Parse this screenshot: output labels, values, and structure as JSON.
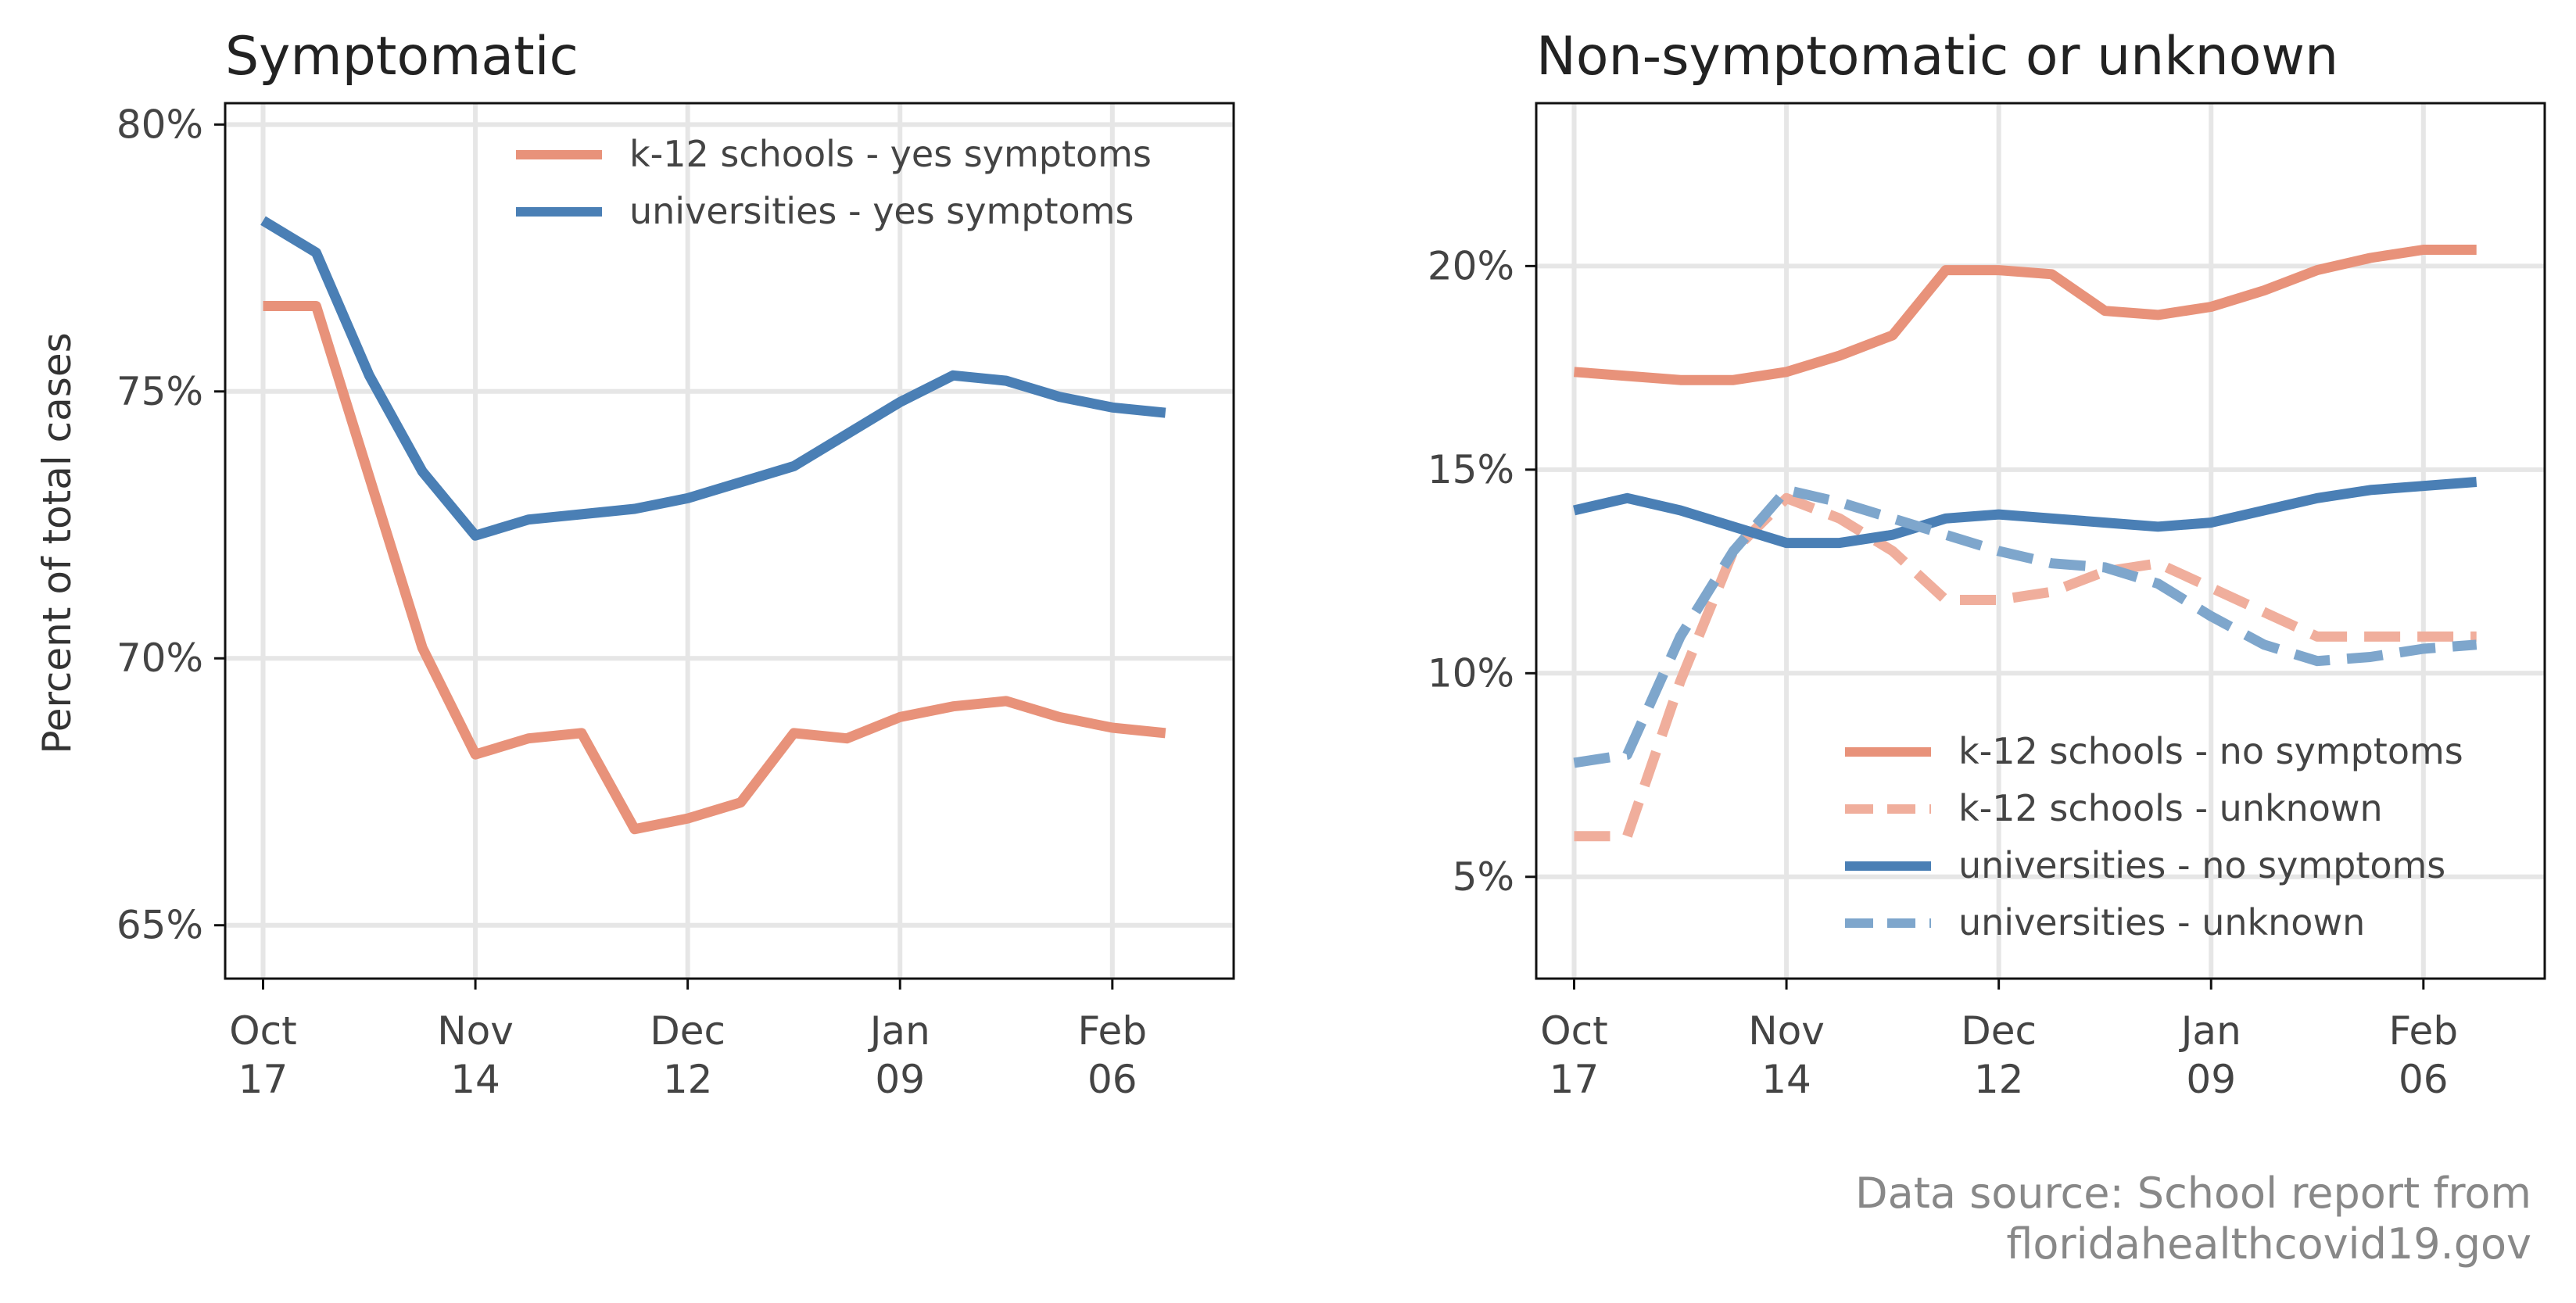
{
  "colors": {
    "k12": "#e8927a",
    "k12_light": "#f0ae9c",
    "univ": "#4a7fb5",
    "univ_light": "#7ea6cc",
    "grid": "#e6e6e6",
    "frame": "#111111"
  },
  "source": {
    "line1": "Data source: School report from",
    "line2": "floridahealthcovid19.gov"
  },
  "chart_data": [
    {
      "type": "line",
      "title": "Symptomatic",
      "ylabel": "Percent of total cases",
      "xlabel": "",
      "grid": true,
      "legend_position": "top-right",
      "ylim": [
        64,
        80.4
      ],
      "yticks": [
        65,
        70,
        75,
        80
      ],
      "ytick_labels": [
        "65%",
        "70%",
        "75%",
        "80%"
      ],
      "xlim": [
        "2020-10-12",
        "2021-02-22"
      ],
      "xticks": [
        "2020-10-17",
        "2020-11-14",
        "2020-12-12",
        "2021-01-09",
        "2021-02-06"
      ],
      "xtick_labels": [
        [
          "Oct",
          "17"
        ],
        [
          "Nov",
          "14"
        ],
        [
          "Dec",
          "12"
        ],
        [
          "Jan",
          "09"
        ],
        [
          "Feb",
          "06"
        ]
      ],
      "x": [
        "2020-10-17",
        "2020-10-24",
        "2020-10-31",
        "2020-11-07",
        "2020-11-14",
        "2020-11-21",
        "2020-11-28",
        "2020-12-05",
        "2020-12-12",
        "2020-12-19",
        "2020-12-26",
        "2021-01-02",
        "2021-01-09",
        "2021-01-16",
        "2021-01-23",
        "2021-01-30",
        "2021-02-06",
        "2021-02-13"
      ],
      "series": [
        {
          "name": "k-12 schools - yes symptoms",
          "color_key": "k12",
          "dash": "solid",
          "values": [
            76.6,
            76.6,
            70.2,
            68.2,
            68.5,
            68.6,
            66.8,
            67.0,
            67.3,
            68.6,
            68.5,
            68.9,
            69.1,
            69.2,
            68.9,
            68.7,
            68.7,
            68.6
          ],
          "x_override": [
            "2020-10-17",
            "2020-10-24",
            "2020-11-07",
            "2020-11-14",
            "2020-11-21",
            "2020-11-28",
            "2020-12-05",
            "2020-12-12",
            "2020-12-19",
            "2020-12-26",
            "2021-01-02",
            "2021-01-09",
            "2021-01-16",
            "2021-01-23",
            "2021-01-30",
            "2021-02-06",
            "2021-02-06",
            "2021-02-13"
          ]
        },
        {
          "name": "universities - yes symptoms",
          "color_key": "univ",
          "dash": "solid",
          "values": [
            78.2,
            77.6,
            75.3,
            73.5,
            72.3,
            72.6,
            72.7,
            72.8,
            73.0,
            73.3,
            73.6,
            74.2,
            74.8,
            75.3,
            75.2,
            74.9,
            74.7,
            74.6
          ]
        }
      ]
    },
    {
      "type": "line",
      "title": "Non-symptomatic or unknown",
      "ylabel": "",
      "xlabel": "",
      "grid": true,
      "legend_position": "bottom-right",
      "ylim": [
        2.5,
        24.0
      ],
      "yticks": [
        5,
        10,
        15,
        20
      ],
      "ytick_labels": [
        "5%",
        "10%",
        "15%",
        "20%"
      ],
      "xlim": [
        "2020-10-12",
        "2021-02-22"
      ],
      "xticks": [
        "2020-10-17",
        "2020-11-14",
        "2020-12-12",
        "2021-01-09",
        "2021-02-06"
      ],
      "xtick_labels": [
        [
          "Oct",
          "17"
        ],
        [
          "Nov",
          "14"
        ],
        [
          "Dec",
          "12"
        ],
        [
          "Jan",
          "09"
        ],
        [
          "Feb",
          "06"
        ]
      ],
      "x": [
        "2020-10-17",
        "2020-10-24",
        "2020-10-31",
        "2020-11-07",
        "2020-11-14",
        "2020-11-21",
        "2020-11-28",
        "2020-12-05",
        "2020-12-12",
        "2020-12-19",
        "2020-12-26",
        "2021-01-02",
        "2021-01-09",
        "2021-01-16",
        "2021-01-23",
        "2021-01-30",
        "2021-02-06",
        "2021-02-13"
      ],
      "series": [
        {
          "name": "k-12 schools - no symptoms",
          "color_key": "k12",
          "dash": "solid",
          "values": [
            17.4,
            17.3,
            17.2,
            17.2,
            17.4,
            17.8,
            18.3,
            19.9,
            19.9,
            19.8,
            18.9,
            18.8,
            19.0,
            19.4,
            19.9,
            20.2,
            20.4,
            20.4
          ]
        },
        {
          "name": "k-12 schools - unknown",
          "color_key": "k12_light",
          "dash": "dashed",
          "values": [
            6.0,
            6.0,
            9.8,
            13.0,
            14.3,
            13.8,
            13.0,
            11.8,
            11.8,
            12.0,
            12.5,
            12.7,
            12.1,
            11.5,
            10.9,
            10.9,
            10.9,
            10.9
          ]
        },
        {
          "name": "universities - no symptoms",
          "color_key": "univ",
          "dash": "solid",
          "values": [
            14.0,
            14.3,
            14.0,
            13.6,
            13.2,
            13.2,
            13.4,
            13.8,
            13.9,
            13.8,
            13.7,
            13.6,
            13.7,
            14.0,
            14.3,
            14.5,
            14.6,
            14.7
          ]
        },
        {
          "name": "universities - unknown",
          "color_key": "univ_light",
          "dash": "dashed",
          "values": [
            7.8,
            8.0,
            10.9,
            13.0,
            14.5,
            14.2,
            13.8,
            13.4,
            13.0,
            12.7,
            12.6,
            12.2,
            11.4,
            10.7,
            10.3,
            10.4,
            10.6,
            10.7
          ]
        }
      ]
    }
  ]
}
